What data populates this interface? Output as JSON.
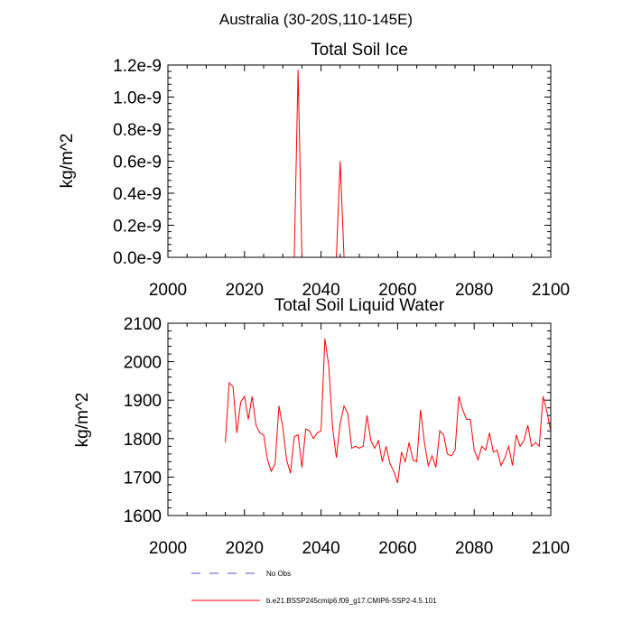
{
  "figure_title": "Australia (30-20S,110-145E)",
  "legend": [
    {
      "label": "No Obs",
      "color": "#5555cc",
      "style": "dashed"
    },
    {
      "label": "b.e21.BSSP245cmip6.f09_g17.CMIP6-SSP2-4.5.101",
      "color": "#ff0000",
      "style": "solid"
    }
  ],
  "chart_data": [
    {
      "type": "line",
      "title": "Total Soil Ice",
      "ylabel": "kg/m^2",
      "xlabel": "",
      "xlim": [
        2000,
        2100
      ],
      "ylim": [
        0,
        1.2e-09
      ],
      "x_ticks": [
        2000,
        2020,
        2040,
        2060,
        2080,
        2100
      ],
      "x_tick_labels": [
        "2000",
        "2020",
        "2040",
        "2060",
        "2080",
        "2100"
      ],
      "y_ticks": [
        0,
        2e-10,
        4e-10,
        6e-10,
        8e-10,
        1e-09,
        1.2e-09
      ],
      "y_tick_labels": [
        "0.0e-9",
        "0.2e-9",
        "0.4e-9",
        "0.6e-9",
        "0.8e-9",
        "1.0e-9",
        "1.2e-9"
      ],
      "series": [
        {
          "name": "b.e21.BSSP245cmip6.f09_g17.CMIP6-SSP2-4.5.101",
          "color": "#ff0000",
          "x": [
            2015,
            2016,
            2017,
            2018,
            2019,
            2020,
            2021,
            2022,
            2023,
            2024,
            2025,
            2026,
            2027,
            2028,
            2029,
            2030,
            2031,
            2032,
            2033,
            2034,
            2035,
            2036,
            2037,
            2038,
            2039,
            2040,
            2041,
            2042,
            2043,
            2044,
            2045,
            2046,
            2047,
            2048,
            2049,
            2050,
            2051,
            2052,
            2053,
            2054,
            2055,
            2056,
            2057,
            2058,
            2059,
            2060,
            2061,
            2062,
            2063,
            2064,
            2065,
            2066,
            2067,
            2068,
            2069,
            2070,
            2071,
            2072,
            2073,
            2074,
            2075,
            2076,
            2077,
            2078,
            2079,
            2080,
            2081,
            2082,
            2083,
            2084,
            2085,
            2086,
            2087,
            2088,
            2089,
            2090,
            2091,
            2092,
            2093,
            2094,
            2095,
            2096,
            2097,
            2098,
            2099,
            2100
          ],
          "values": [
            0,
            0,
            0,
            0,
            0,
            0,
            0,
            0,
            0,
            0,
            0,
            0,
            0,
            0,
            0,
            0,
            0,
            0,
            0,
            1.17e-09,
            0,
            0,
            0,
            0,
            0,
            0,
            0,
            0,
            0,
            0,
            6e-10,
            0,
            0,
            0,
            0,
            0,
            0,
            0,
            0,
            0,
            0,
            0,
            0,
            0,
            0,
            0,
            0,
            0,
            0,
            0,
            0,
            0,
            0,
            0,
            0,
            0,
            0,
            0,
            0,
            0,
            0,
            0,
            0,
            0,
            0,
            0,
            0,
            0,
            0,
            0,
            0,
            0,
            0,
            0,
            0,
            0,
            0,
            0,
            0,
            0,
            0,
            0,
            0,
            0,
            0,
            0
          ]
        }
      ]
    },
    {
      "type": "line",
      "title": "Total Soil Liquid Water",
      "ylabel": "kg/m^2",
      "xlabel": "",
      "xlim": [
        2000,
        2100
      ],
      "ylim": [
        1600,
        2100
      ],
      "x_ticks": [
        2000,
        2020,
        2040,
        2060,
        2080,
        2100
      ],
      "x_tick_labels": [
        "2000",
        "2020",
        "2040",
        "2060",
        "2080",
        "2100"
      ],
      "y_ticks": [
        1600,
        1700,
        1800,
        1900,
        2000,
        2100
      ],
      "y_tick_labels": [
        "1600",
        "1700",
        "1800",
        "1900",
        "2000",
        "2100"
      ],
      "series": [
        {
          "name": "b.e21.BSSP245cmip6.f09_g17.CMIP6-SSP2-4.5.101",
          "color": "#ff0000",
          "x": [
            2015,
            2016,
            2017,
            2018,
            2019,
            2020,
            2021,
            2022,
            2023,
            2024,
            2025,
            2026,
            2027,
            2028,
            2029,
            2030,
            2031,
            2032,
            2033,
            2034,
            2035,
            2036,
            2037,
            2038,
            2039,
            2040,
            2041,
            2042,
            2043,
            2044,
            2045,
            2046,
            2047,
            2048,
            2049,
            2050,
            2051,
            2052,
            2053,
            2054,
            2055,
            2056,
            2057,
            2058,
            2059,
            2060,
            2061,
            2062,
            2063,
            2064,
            2065,
            2066,
            2067,
            2068,
            2069,
            2070,
            2071,
            2072,
            2073,
            2074,
            2075,
            2076,
            2077,
            2078,
            2079,
            2080,
            2081,
            2082,
            2083,
            2084,
            2085,
            2086,
            2087,
            2088,
            2089,
            2090,
            2091,
            2092,
            2093,
            2094,
            2095,
            2096,
            2097,
            2098,
            2099,
            2100
          ],
          "values": [
            1790,
            1945,
            1935,
            1815,
            1895,
            1910,
            1850,
            1910,
            1835,
            1815,
            1810,
            1745,
            1715,
            1735,
            1885,
            1830,
            1745,
            1710,
            1805,
            1810,
            1725,
            1825,
            1820,
            1800,
            1815,
            1820,
            2060,
            1990,
            1830,
            1750,
            1840,
            1885,
            1865,
            1775,
            1780,
            1775,
            1780,
            1860,
            1795,
            1775,
            1795,
            1740,
            1780,
            1735,
            1715,
            1685,
            1765,
            1740,
            1790,
            1745,
            1740,
            1875,
            1790,
            1730,
            1755,
            1725,
            1820,
            1810,
            1760,
            1755,
            1770,
            1910,
            1875,
            1850,
            1850,
            1770,
            1745,
            1780,
            1770,
            1815,
            1765,
            1770,
            1730,
            1750,
            1780,
            1730,
            1810,
            1780,
            1795,
            1835,
            1780,
            1790,
            1780,
            1910,
            1870,
            1820
          ]
        }
      ]
    }
  ]
}
